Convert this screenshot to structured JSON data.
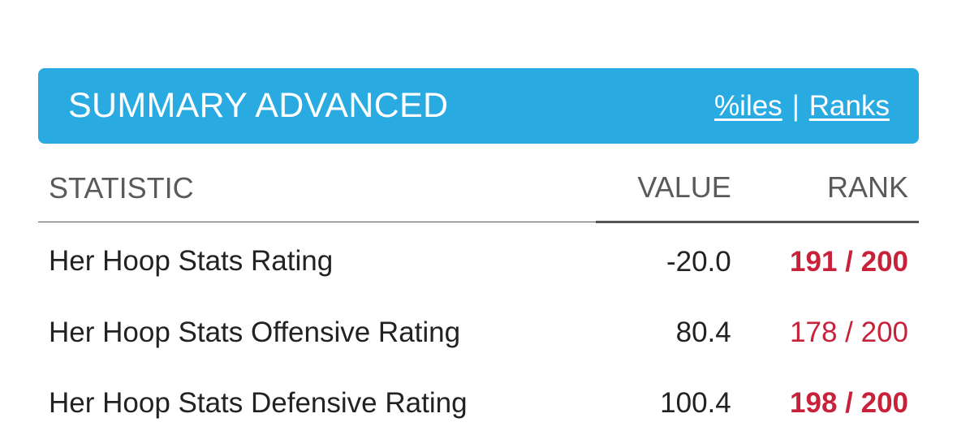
{
  "header": {
    "title": "SUMMARY ADVANCED",
    "link_percentiles": "%iles",
    "separator": "|",
    "link_ranks": "Ranks"
  },
  "table": {
    "columns": [
      "STATISTIC",
      "VALUE",
      "RANK"
    ],
    "rows": [
      {
        "statistic": "Her Hoop Stats Rating",
        "value": "-20.0",
        "rank": "191 / 200",
        "rank_bold": true
      },
      {
        "statistic": "Her Hoop Stats Offensive Rating",
        "value": "80.4",
        "rank": "178 / 200",
        "rank_bold": false
      },
      {
        "statistic": "Her Hoop Stats Defensive Rating",
        "value": "100.4",
        "rank": "198 / 200",
        "rank_bold": true
      }
    ]
  },
  "colors": {
    "header_bg": "#29abe2",
    "rank_red": "#c8213a"
  }
}
